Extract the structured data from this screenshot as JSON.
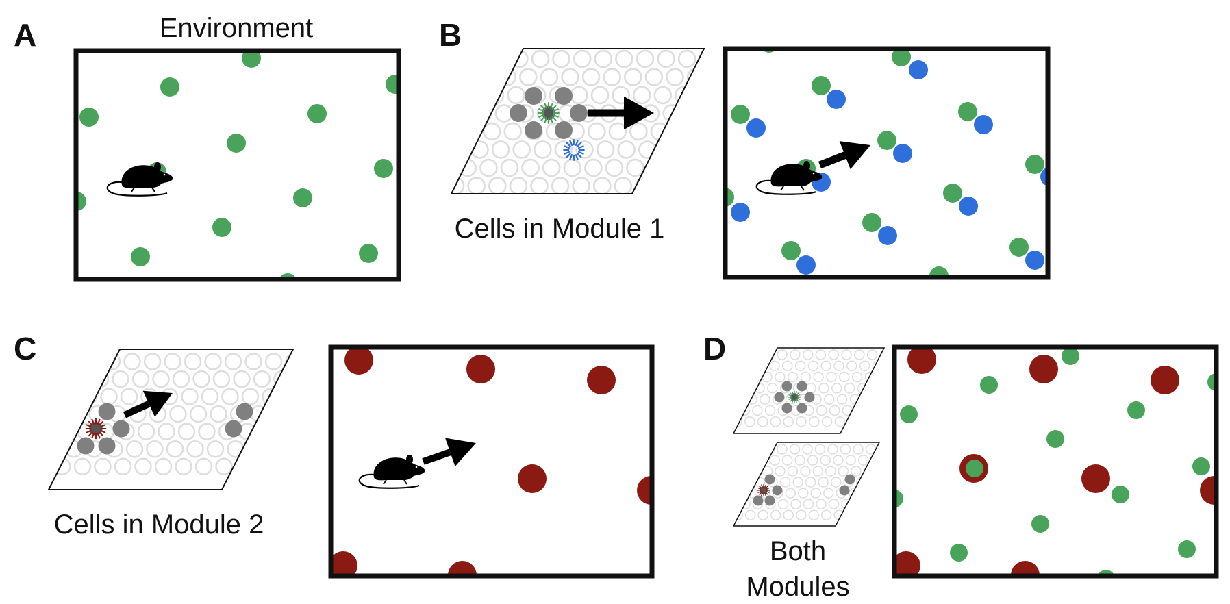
{
  "panels": {
    "a": {
      "letter": "A",
      "title": "Environment"
    },
    "b": {
      "letter": "B",
      "caption": "Cells in Module 1"
    },
    "c": {
      "letter": "C",
      "caption": "Cells in Module 2"
    },
    "d": {
      "letter": "D",
      "caption_line1": "Both",
      "caption_line2": "Modules"
    }
  },
  "colors": {
    "module1_field": "#49a35b",
    "module1_next_field": "#2f6fdc",
    "module2_field": "#8b1a12",
    "active_neighbor_cell": "#808080",
    "inactive_cell_outline": "#dddddd",
    "frame": "#111111",
    "arrow": "#000000"
  },
  "icons": {
    "animal": "mouse-icon",
    "movement": "arrow-icon",
    "active_cell": "spiky-active-cell-icon"
  }
}
